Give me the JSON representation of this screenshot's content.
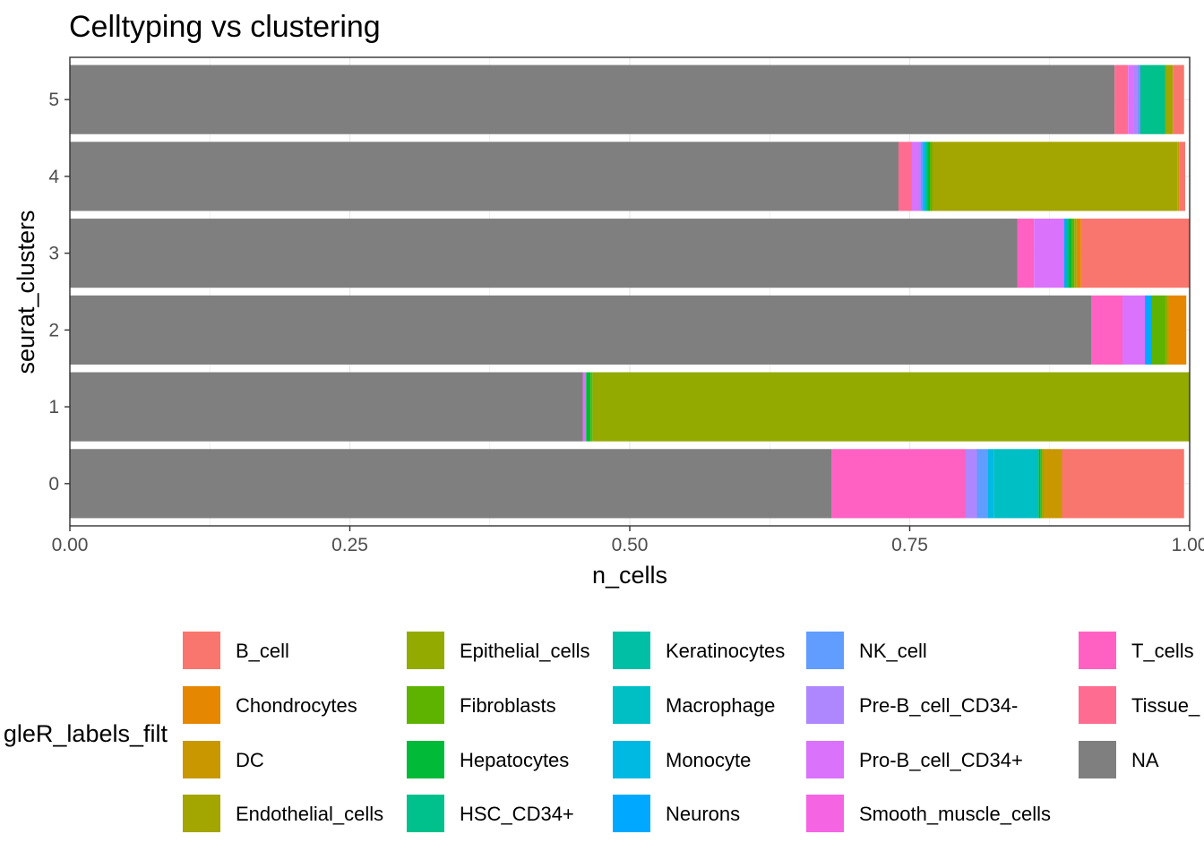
{
  "chart_data": {
    "type": "bar",
    "orientation": "horizontal",
    "stacked": true,
    "title": "Celltyping vs clustering",
    "xlabel": "n_cells",
    "ylabel": "seurat_clusters",
    "xlim": [
      0,
      1
    ],
    "x_ticks": [
      "0.00",
      "0.25",
      "0.50",
      "0.75",
      "1.00"
    ],
    "categories": [
      "0",
      "1",
      "2",
      "3",
      "4",
      "5"
    ],
    "grid": true,
    "legend": {
      "title": "gleR_labels_filt",
      "position": "bottom",
      "columns": [
        [
          "B_cell",
          "Chondrocytes",
          "DC",
          "Endothelial_cells"
        ],
        [
          "Epithelial_cells",
          "Fibroblasts",
          "Hepatocytes",
          "HSC_CD34+"
        ],
        [
          "Keratinocytes",
          "Macrophage",
          "Monocyte",
          "Neurons"
        ],
        [
          "NK_cell",
          "Pre-B_cell_CD34-",
          "Pro-B_cell_CD34+",
          "Smooth_muscle_cells"
        ],
        [
          "T_cells",
          "Tissue_",
          "NA"
        ]
      ]
    },
    "colors": {
      "B_cell": "#F8766D",
      "Chondrocytes": "#E58700",
      "DC": "#C99800",
      "Endothelial_cells": "#A3A500",
      "Epithelial_cells": "#93AA00",
      "Fibroblasts": "#5EB300",
      "Hepatocytes": "#00BA38",
      "HSC_CD34+": "#00C08B",
      "Keratinocytes": "#00BFA5",
      "Macrophage": "#00BFC4",
      "Monocyte": "#00B9E3",
      "Neurons": "#00A9FF",
      "NK_cell": "#619CFF",
      "Pre-B_cell_CD34-": "#AE87FF",
      "Pro-B_cell_CD34+": "#DB72FB",
      "Smooth_muscle_cells": "#F564E3",
      "T_cells": "#FF61C3",
      "Tissue_": "#FF6C91",
      "NA": "#7F7F7F"
    },
    "series": [
      {
        "name": "NA",
        "values": [
          0.68,
          0.458,
          0.912,
          0.846,
          0.74,
          0.933
        ]
      },
      {
        "name": "Tissue_",
        "values": [
          0,
          0,
          0,
          0,
          0.012,
          0.012
        ]
      },
      {
        "name": "T_cells",
        "values": [
          0.12,
          0,
          0.028,
          0.015,
          0,
          0
        ]
      },
      {
        "name": "Smooth_muscle_cells",
        "values": [
          0,
          0,
          0,
          0,
          0,
          0
        ]
      },
      {
        "name": "Pro-B_cell_CD34+",
        "values": [
          0,
          0.003,
          0.02,
          0.027,
          0.006,
          0.005
        ]
      },
      {
        "name": "Pre-B_cell_CD34-",
        "values": [
          0.01,
          0,
          0,
          0,
          0.002,
          0.004
        ]
      },
      {
        "name": "NK_cell",
        "values": [
          0.01,
          0,
          0,
          0,
          0.002,
          0.002
        ]
      },
      {
        "name": "Neurons",
        "values": [
          0,
          0,
          0.006,
          0.002,
          0,
          0
        ]
      },
      {
        "name": "Monocyte",
        "values": [
          0.005,
          0,
          0,
          0,
          0.002,
          0
        ]
      },
      {
        "name": "Macrophage",
        "values": [
          0.04,
          0,
          0,
          0,
          0,
          0
        ]
      },
      {
        "name": "Keratinocytes",
        "values": [
          0,
          0,
          0,
          0,
          0,
          0
        ]
      },
      {
        "name": "HSC_CD34+",
        "values": [
          0,
          0,
          0,
          0.002,
          0.002,
          0.022
        ]
      },
      {
        "name": "Hepatocytes",
        "values": [
          0.002,
          0.004,
          0,
          0.003,
          0.002,
          0
        ]
      },
      {
        "name": "Fibroblasts",
        "values": [
          0.001,
          0.002,
          0.012,
          0.002,
          0.002,
          0
        ]
      },
      {
        "name": "Epithelial_cells",
        "values": [
          0,
          0.533,
          0.002,
          0.002,
          0,
          0.002
        ]
      },
      {
        "name": "Endothelial_cells",
        "values": [
          0.002,
          0,
          0,
          0,
          0.219,
          0.005
        ]
      },
      {
        "name": "DC",
        "values": [
          0.016,
          0,
          0.002,
          0,
          0.002,
          0
        ]
      },
      {
        "name": "Chondrocytes",
        "values": [
          0,
          0,
          0.015,
          0.004,
          0,
          0
        ]
      },
      {
        "name": "B_cell",
        "values": [
          0.109,
          0,
          0,
          0.097,
          0.005,
          0.01
        ]
      }
    ]
  }
}
